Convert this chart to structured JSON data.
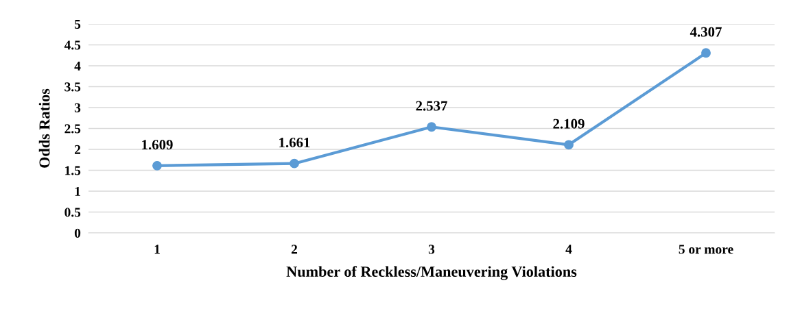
{
  "chart_data": {
    "type": "line",
    "xlabel": "Number of Reckless/Maneuvering Violations",
    "ylabel": "Odds Ratios",
    "categories": [
      "1",
      "2",
      "3",
      "4",
      "5 or more"
    ],
    "series": [
      {
        "color": "#5b9bd5",
        "values": [
          1.609,
          1.661,
          2.537,
          2.109,
          4.307
        ]
      }
    ],
    "ylim": [
      0,
      5
    ],
    "yticks": [
      0,
      0.5,
      1,
      1.5,
      2,
      2.5,
      3,
      3.5,
      4,
      4.5,
      5
    ],
    "grid": "y",
    "marker": "circle",
    "line_style": "solid",
    "data_labels": true
  }
}
